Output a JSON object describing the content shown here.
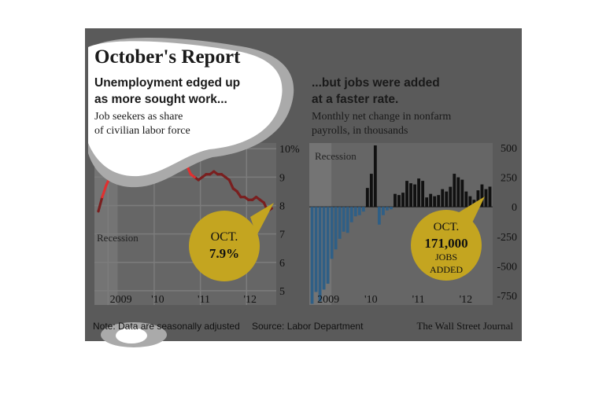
{
  "header": {
    "title": "October's Report"
  },
  "colors": {
    "panel_bg": "#5a5a5a",
    "plot_bg": "#666666",
    "recession_bg": "#747474",
    "grid": "#7c7c7c",
    "line_red": "#e03030",
    "line_dark": "#7a1f1f",
    "bar_positive": "#111111",
    "bar_negative": "#2f5f86",
    "callout": "#c4a520"
  },
  "left_chart": {
    "headline": "Unemployment edged up",
    "headline2": "as more sought work...",
    "subtitle": "Job seekers as share",
    "subtitle2": "of civilian labor force",
    "recession_label": "Recession",
    "callout_line1": "OCT.",
    "callout_line2": "7.9%"
  },
  "right_chart": {
    "headline": "...but jobs were added",
    "headline2": "at a faster rate.",
    "subtitle": "Monthly net change in nonfarm",
    "subtitle2": "payrolls, in thousands",
    "recession_label": "Recession",
    "callout_line1": "OCT.",
    "callout_line2": "171,000",
    "callout_line3": "JOBS",
    "callout_line4": "ADDED"
  },
  "footer": {
    "note": "Note: Data are seasonally adjusted",
    "source": "Source: Labor Department",
    "brand": "The Wall Street Journal"
  },
  "chart_data": [
    {
      "type": "line",
      "title": "Unemployment edged up as more sought work...",
      "subtitle": "Job seekers as share of civilian labor force",
      "x_tick_labels": [
        "2009",
        "'10",
        "'11",
        "'12"
      ],
      "y_tick_labels": [
        "10%",
        "9",
        "8",
        "7",
        "6",
        "5"
      ],
      "y_ticks": [
        10,
        9,
        8,
        7,
        6,
        5
      ],
      "ylim": [
        4.5,
        10.2
      ],
      "x_range": [
        0,
        46
      ],
      "recession_span": [
        0,
        5
      ],
      "grid": true,
      "x": [
        0,
        1,
        2,
        3,
        4,
        5,
        6,
        7,
        8,
        9,
        10,
        11,
        12,
        13,
        14,
        15,
        16,
        17,
        18,
        19,
        20,
        21,
        22,
        23,
        24,
        25,
        26,
        27,
        28,
        29,
        30,
        31,
        32,
        33,
        34,
        35,
        36,
        37,
        38,
        39,
        40,
        41,
        42,
        43,
        44,
        45
      ],
      "values": [
        7.8,
        8.3,
        8.7,
        9.0,
        9.4,
        9.5,
        9.5,
        9.6,
        9.8,
        10.0,
        9.9,
        9.9,
        9.7,
        9.8,
        9.8,
        9.9,
        9.6,
        9.4,
        9.5,
        9.5,
        9.6,
        9.5,
        9.8,
        9.4,
        9.1,
        9.0,
        8.9,
        9.0,
        9.1,
        9.1,
        9.2,
        9.1,
        9.1,
        9.0,
        8.9,
        8.6,
        8.5,
        8.3,
        8.3,
        8.2,
        8.2,
        8.3,
        8.2,
        8.1,
        7.8,
        7.9
      ],
      "callout": "OCT. 7.9%"
    },
    {
      "type": "bar",
      "title": "...but jobs were added at a faster rate.",
      "subtitle": "Monthly net change in nonfarm payrolls, in thousands",
      "x_tick_labels": [
        "2009",
        "'10",
        "'11",
        "'12"
      ],
      "y_tick_labels": [
        "500",
        "250",
        "0",
        "-250",
        "-500",
        "-750"
      ],
      "y_ticks": [
        500,
        250,
        0,
        -250,
        -500,
        -750
      ],
      "ylim": [
        -830,
        540
      ],
      "x_range": [
        0,
        46
      ],
      "recession_span": [
        0,
        5
      ],
      "grid": false,
      "x": [
        0,
        1,
        2,
        3,
        4,
        5,
        6,
        7,
        8,
        9,
        10,
        11,
        12,
        13,
        14,
        15,
        16,
        17,
        18,
        19,
        20,
        21,
        22,
        23,
        24,
        25,
        26,
        27,
        28,
        29,
        30,
        31,
        32,
        33,
        34,
        35,
        36,
        37,
        38,
        39,
        40,
        41,
        42,
        43,
        44,
        45
      ],
      "values": [
        -820,
        -720,
        -800,
        -700,
        -650,
        -440,
        -360,
        -270,
        -210,
        -220,
        -130,
        -80,
        -70,
        -40,
        160,
        280,
        520,
        -150,
        -70,
        -30,
        -20,
        110,
        100,
        120,
        220,
        200,
        190,
        240,
        220,
        80,
        110,
        90,
        100,
        150,
        130,
        170,
        280,
        250,
        230,
        130,
        90,
        60,
        140,
        190,
        150,
        171
      ],
      "callout": "OCT. 171,000 JOBS ADDED"
    }
  ]
}
